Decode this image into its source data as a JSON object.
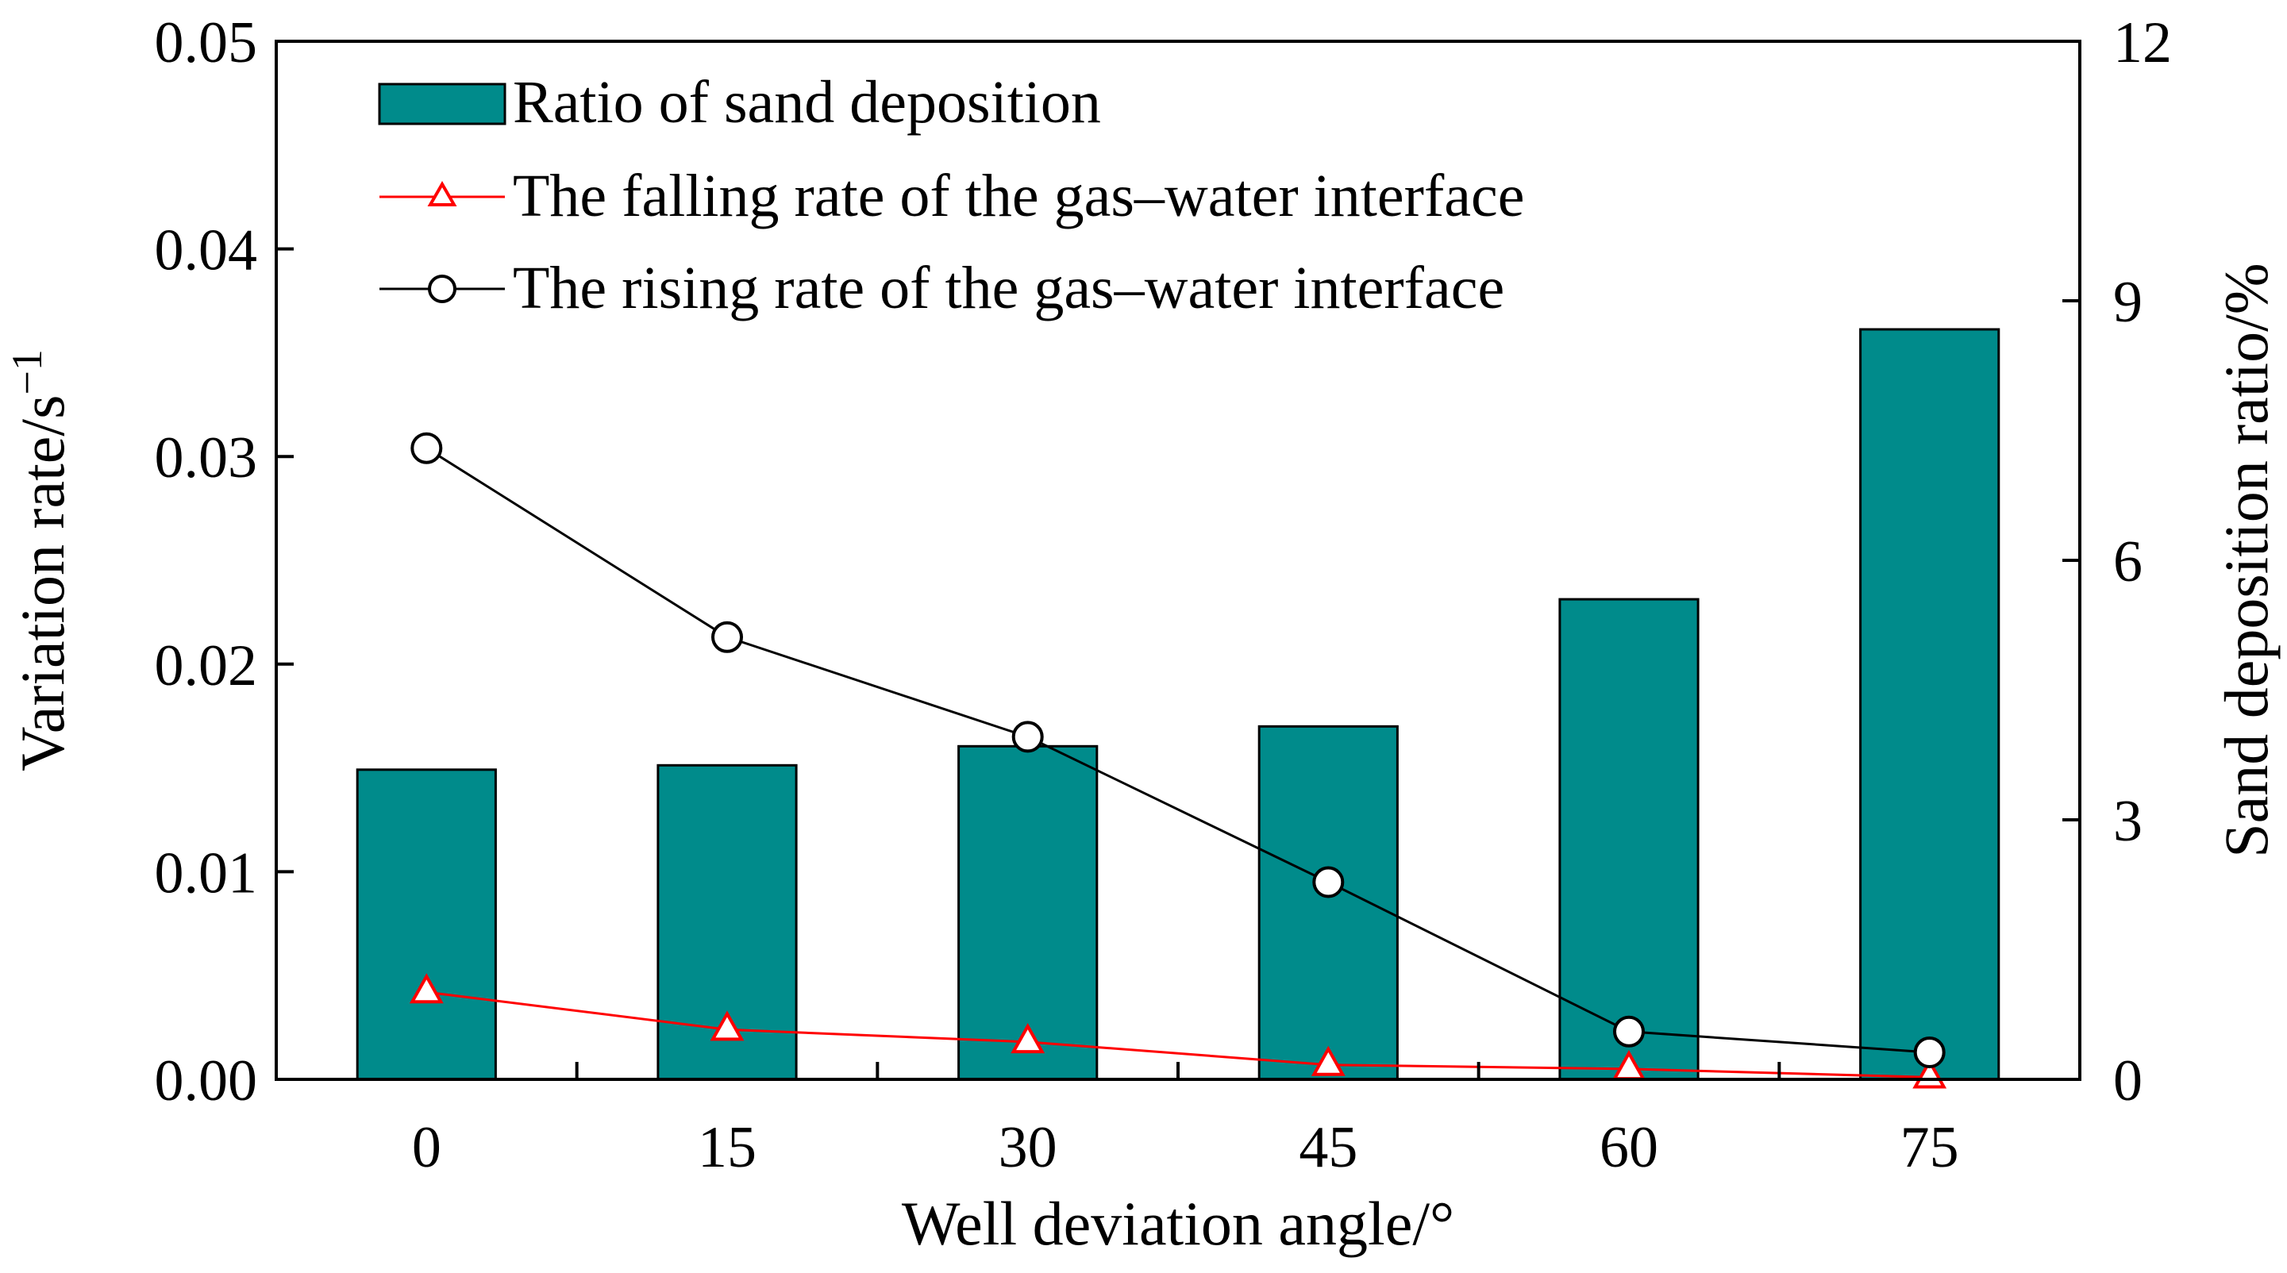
{
  "chart_data": {
    "type": "bar",
    "categories": [
      "0",
      "15",
      "30",
      "45",
      "60",
      "75"
    ],
    "xlabel": "Well deviation angle/°",
    "ylabel": "Variation rate/s",
    "ylabel_superscript": "−1",
    "y2label": "Sand deposition ratio/%",
    "ylim": [
      0,
      0.05
    ],
    "y2lim": [
      0,
      12
    ],
    "yticks": [
      "0.00",
      "0.01",
      "0.02",
      "0.03",
      "0.04",
      "0.05"
    ],
    "y2ticks": [
      "0",
      "3",
      "6",
      "9",
      "12"
    ],
    "grid": false,
    "legend_position": "top-left",
    "series": [
      {
        "name": "Ratio of sand deposition",
        "kind": "bar",
        "axis": "right",
        "color": "#008b8b",
        "values": [
          3.58,
          3.63,
          3.85,
          4.08,
          5.55,
          8.67
        ]
      },
      {
        "name": "The falling rate of the gas–water interface",
        "kind": "line",
        "marker": "triangle",
        "axis": "left",
        "color": "#ff0000",
        "values": [
          0.0042,
          0.0024,
          0.0018,
          0.0007,
          0.0005,
          0.0001
        ]
      },
      {
        "name": "The rising rate of the gas–water interface",
        "kind": "line",
        "marker": "circle",
        "axis": "left",
        "color": "#000000",
        "values": [
          0.0304,
          0.0213,
          0.0165,
          0.0095,
          0.0023,
          0.0013
        ]
      }
    ]
  }
}
